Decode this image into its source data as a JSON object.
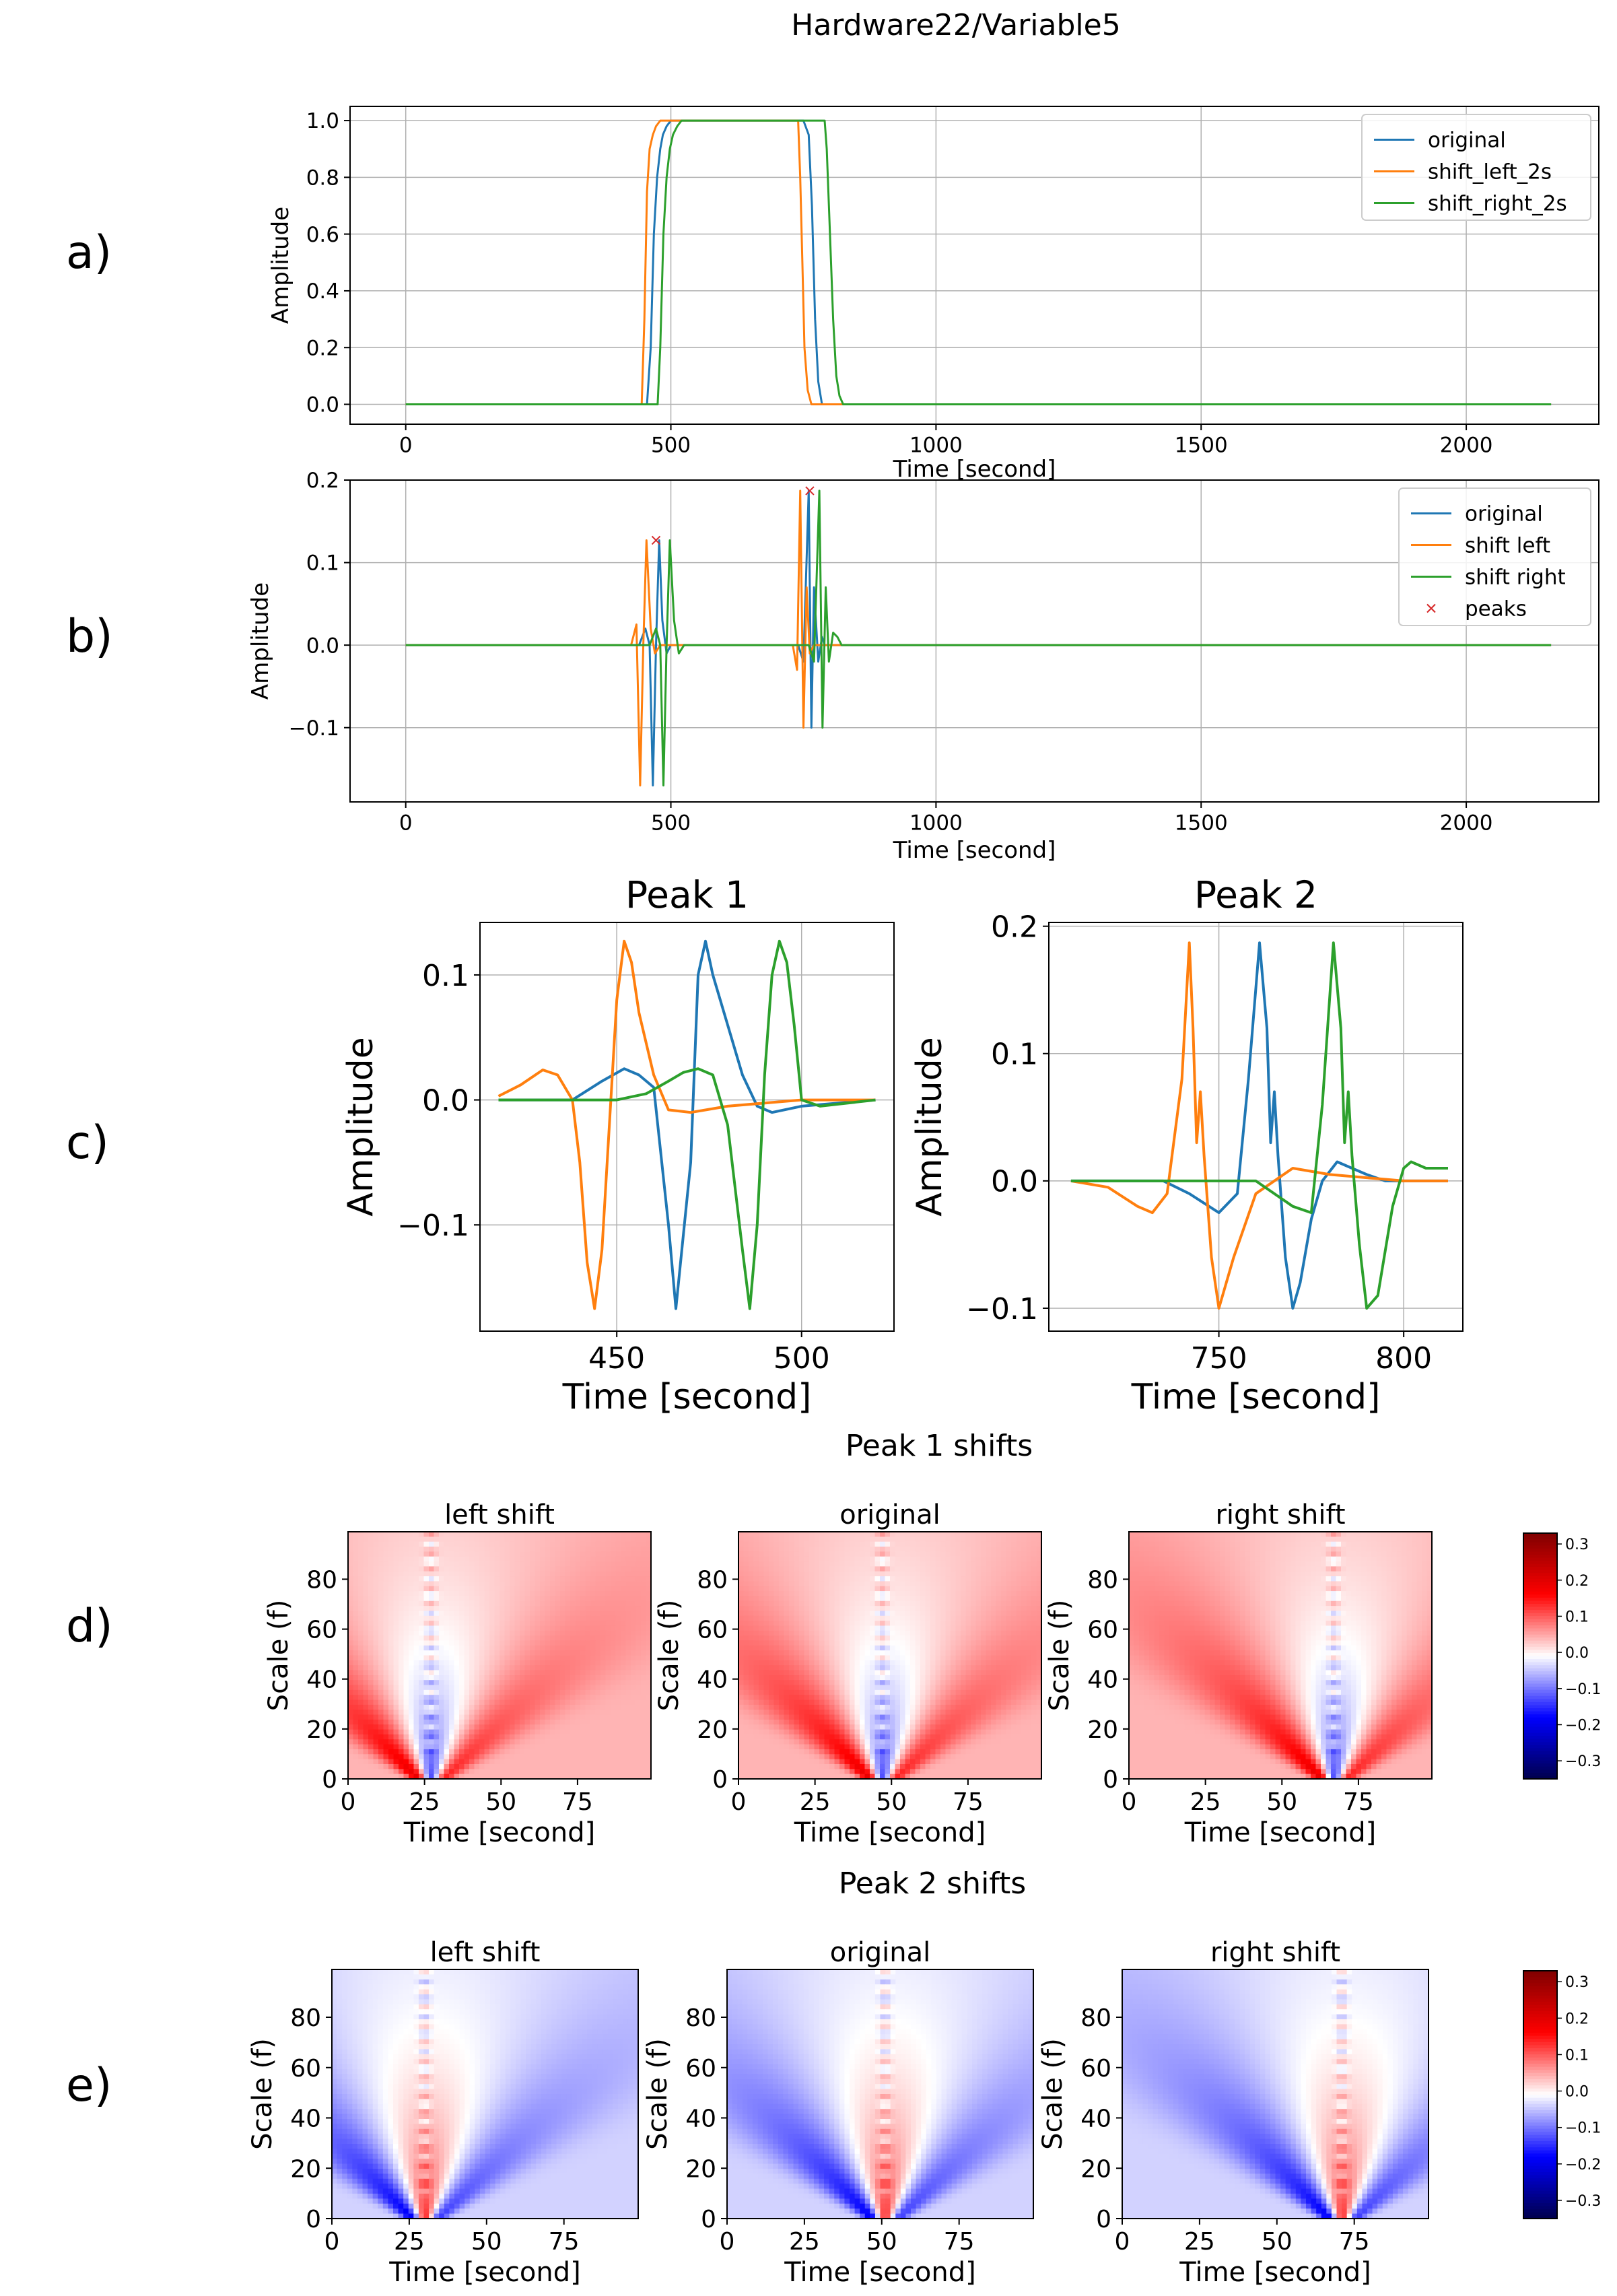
{
  "figure_title": "Hardware22/Variable5",
  "panel_labels": [
    "a)",
    "b)",
    "c)",
    "d)",
    "e)"
  ],
  "colors": {
    "original": "#1f77b4",
    "shift_left": "#ff7f0e",
    "shift_right": "#2ca02c",
    "peaks": "#d62728",
    "grid": "#b0b0b0",
    "colormap": "seismic"
  },
  "chart_data": [
    {
      "id": "a",
      "type": "line",
      "xlabel": "Time [second]",
      "ylabel": "Amplitude",
      "xlim": [
        -105,
        2250
      ],
      "ylim": [
        -0.07,
        1.05
      ],
      "xticks": [
        0,
        500,
        1000,
        1500,
        2000
      ],
      "yticks": [
        0.0,
        0.2,
        0.4,
        0.6,
        0.8,
        1.0
      ],
      "ytick_labels": [
        "0.0",
        "0.2",
        "0.4",
        "0.6",
        "0.8",
        "1.0"
      ],
      "grid": true,
      "legend": "top-right",
      "series": [
        {
          "name": "original",
          "color_key": "original",
          "x": [
            0,
            455,
            462,
            468,
            474,
            480,
            485,
            492,
            500,
            520,
            750,
            760,
            766,
            772,
            778,
            785,
            2160
          ],
          "y": [
            0,
            0,
            0.2,
            0.6,
            0.8,
            0.9,
            0.95,
            0.98,
            1.0,
            1.0,
            1.0,
            0.95,
            0.7,
            0.3,
            0.08,
            0,
            0
          ]
        },
        {
          "name": "shift_left_2s",
          "color_key": "shift_left",
          "x": [
            0,
            445,
            450,
            455,
            460,
            466,
            472,
            480,
            490,
            740,
            744,
            748,
            752,
            758,
            765,
            2160
          ],
          "y": [
            0,
            0,
            0.3,
            0.75,
            0.9,
            0.95,
            0.98,
            1.0,
            1.0,
            1.0,
            0.8,
            0.5,
            0.2,
            0.05,
            0,
            0
          ]
        },
        {
          "name": "shift_right_2s",
          "color_key": "shift_right",
          "x": [
            0,
            475,
            480,
            486,
            492,
            498,
            504,
            512,
            520,
            790,
            794,
            800,
            806,
            812,
            818,
            825,
            2160
          ],
          "y": [
            0,
            0,
            0.2,
            0.6,
            0.8,
            0.9,
            0.95,
            0.98,
            1.0,
            1.0,
            0.9,
            0.6,
            0.3,
            0.1,
            0.03,
            0,
            0
          ]
        }
      ]
    },
    {
      "id": "b",
      "type": "line",
      "xlabel": "Time [second]",
      "ylabel": "Amplitude",
      "xlim": [
        -105,
        2250
      ],
      "ylim": [
        -0.19,
        0.2
      ],
      "xticks": [
        0,
        500,
        1000,
        1500,
        2000
      ],
      "yticks": [
        -0.1,
        0.0,
        0.1,
        0.2
      ],
      "ytick_labels": [
        "−0.1",
        "0.0",
        "0.1",
        "0.2"
      ],
      "grid": true,
      "legend": "top-right",
      "series": [
        {
          "name": "original",
          "color_key": "original",
          "x": [
            0,
            440,
            452,
            460,
            466,
            472,
            478,
            484,
            492,
            500,
            520,
            740,
            750,
            760,
            765,
            770,
            778,
            785,
            790,
            800,
            2160
          ],
          "y": [
            0,
            0,
            0.02,
            0,
            -0.17,
            0,
            0.127,
            0.03,
            -0.01,
            0,
            0,
            0,
            -0.02,
            0.187,
            -0.1,
            0.07,
            -0.02,
            0.01,
            0,
            0,
            0
          ]
        },
        {
          "name": "shift left",
          "color_key": "shift_left",
          "x": [
            0,
            425,
            435,
            442,
            448,
            454,
            462,
            470,
            480,
            730,
            738,
            744,
            750,
            756,
            762,
            770,
            2160
          ],
          "y": [
            0,
            0,
            0.025,
            -0.17,
            0,
            0.127,
            0.02,
            -0.01,
            0,
            0,
            -0.03,
            0.187,
            -0.1,
            0.07,
            -0.01,
            0,
            0
          ]
        },
        {
          "name": "shift right",
          "color_key": "shift_right",
          "x": [
            0,
            460,
            472,
            480,
            486,
            492,
            498,
            506,
            515,
            525,
            760,
            770,
            780,
            786,
            792,
            798,
            806,
            814,
            822,
            2160
          ],
          "y": [
            0,
            0,
            0.02,
            0,
            -0.17,
            0,
            0.127,
            0.03,
            -0.01,
            0,
            0,
            -0.02,
            0.187,
            -0.1,
            0.07,
            -0.02,
            0.015,
            0.01,
            0,
            0
          ]
        }
      ],
      "peaks": {
        "name": "peaks",
        "color_key": "peaks",
        "x": [
          472,
          762
        ],
        "y": [
          0.127,
          0.187
        ]
      }
    },
    {
      "id": "c1",
      "type": "line",
      "title": "Peak 1",
      "xlabel": "Time [second]",
      "ylabel": "Amplitude",
      "xlim": [
        413,
        525
      ],
      "ylim": [
        -0.185,
        0.142
      ],
      "xticks": [
        450,
        500
      ],
      "yticks": [
        -0.1,
        0.0,
        0.1
      ],
      "ytick_labels": [
        "−0.1",
        "0.0",
        "0.1"
      ],
      "grid": true,
      "series": [
        {
          "name": "original",
          "color_key": "original",
          "x": [
            418,
            438,
            446,
            452,
            456,
            460,
            464,
            466,
            470,
            472,
            474,
            476,
            480,
            484,
            488,
            492,
            500,
            520
          ],
          "y": [
            0,
            0,
            0.015,
            0.025,
            0.02,
            0.01,
            -0.1,
            -0.167,
            -0.05,
            0.1,
            0.127,
            0.1,
            0.06,
            0.02,
            -0.005,
            -0.01,
            -0.005,
            0
          ]
        },
        {
          "name": "shift left",
          "color_key": "shift_left",
          "x": [
            418,
            424,
            430,
            434,
            438,
            440,
            442,
            444,
            446,
            448,
            450,
            452,
            454,
            456,
            460,
            464,
            470,
            480,
            500,
            520
          ],
          "y": [
            0.003,
            0.012,
            0.024,
            0.02,
            0.0,
            -0.05,
            -0.13,
            -0.167,
            -0.12,
            -0.02,
            0.08,
            0.127,
            0.11,
            0.07,
            0.02,
            -0.008,
            -0.01,
            -0.005,
            0,
            0
          ]
        },
        {
          "name": "shift right",
          "color_key": "shift_right",
          "x": [
            418,
            450,
            458,
            464,
            468,
            472,
            476,
            480,
            484,
            486,
            488,
            490,
            492,
            494,
            496,
            498,
            500,
            505,
            520
          ],
          "y": [
            0,
            0,
            0.005,
            0.015,
            0.022,
            0.025,
            0.02,
            -0.02,
            -0.12,
            -0.167,
            -0.1,
            0.02,
            0.1,
            0.127,
            0.11,
            0.06,
            0.0,
            -0.005,
            0
          ]
        }
      ]
    },
    {
      "id": "c2",
      "type": "line",
      "title": "Peak 2",
      "xlabel": "Time [second]",
      "ylabel": "Amplitude",
      "xlim": [
        704,
        816
      ],
      "ylim": [
        -0.118,
        0.203
      ],
      "xticks": [
        750,
        800
      ],
      "yticks": [
        -0.1,
        0.0,
        0.1,
        0.2
      ],
      "ytick_labels": [
        "−0.1",
        "0.0",
        "0.1",
        "0.2"
      ],
      "grid": true,
      "series": [
        {
          "name": "original",
          "color_key": "original",
          "x": [
            710,
            735,
            742,
            750,
            755,
            758,
            761,
            763,
            764,
            765,
            766,
            768,
            770,
            772,
            775,
            778,
            782,
            786,
            790,
            795,
            800,
            812
          ],
          "y": [
            0,
            0,
            -0.01,
            -0.025,
            -0.01,
            0.08,
            0.187,
            0.12,
            0.03,
            0.07,
            0.02,
            -0.06,
            -0.1,
            -0.08,
            -0.03,
            0.0,
            0.015,
            0.01,
            0.005,
            0,
            0,
            0
          ]
        },
        {
          "name": "shift left",
          "color_key": "shift_left",
          "x": [
            710,
            720,
            728,
            732,
            736,
            740,
            742,
            743,
            744,
            745,
            746,
            748,
            750,
            754,
            760,
            770,
            780,
            800,
            812
          ],
          "y": [
            0,
            -0.005,
            -0.02,
            -0.025,
            -0.01,
            0.08,
            0.187,
            0.12,
            0.03,
            0.07,
            0.02,
            -0.06,
            -0.1,
            -0.06,
            -0.01,
            0.01,
            0.005,
            0,
            0
          ]
        },
        {
          "name": "shift right",
          "color_key": "shift_right",
          "x": [
            710,
            760,
            770,
            775,
            778,
            781,
            783,
            784,
            785,
            786,
            788,
            790,
            793,
            797,
            800,
            802,
            806,
            812
          ],
          "y": [
            0,
            0,
            -0.02,
            -0.025,
            0.06,
            0.187,
            0.12,
            0.03,
            0.07,
            0.02,
            -0.05,
            -0.1,
            -0.09,
            -0.02,
            0.01,
            0.015,
            0.01,
            0.01
          ]
        }
      ]
    },
    {
      "id": "d",
      "type": "heatmap",
      "group_title": "Peak 1 shifts",
      "panels": [
        {
          "title": "left shift",
          "peak_time": 27
        },
        {
          "title": "original",
          "peak_time": 47
        },
        {
          "title": "right shift",
          "peak_time": 67
        }
      ],
      "xlabel": "Time [second]",
      "ylabel": "Scale (f)",
      "xlim": [
        0,
        99
      ],
      "ylim": [
        0,
        99
      ],
      "xticks": [
        0,
        25,
        50,
        75
      ],
      "yticks": [
        0,
        20,
        40,
        60,
        80
      ],
      "background_value": 0.04,
      "colorbar": {
        "min": -0.35,
        "max": 0.33,
        "ticks": [
          0.3,
          0.2,
          0.1,
          0.0,
          -0.1,
          -0.2,
          -0.3
        ],
        "tick_labels": [
          "0.3",
          "0.2",
          "0.1",
          "0.0",
          "−0.1",
          "−0.2",
          "−0.3"
        ]
      }
    },
    {
      "id": "e",
      "type": "heatmap",
      "group_title": "Peak 2 shifts",
      "panels": [
        {
          "title": "left shift",
          "peak_time": 30
        },
        {
          "title": "original",
          "peak_time": 51
        },
        {
          "title": "right shift",
          "peak_time": 71
        }
      ],
      "xlabel": "Time [second]",
      "ylabel": "Scale (f)",
      "xlim": [
        0,
        99
      ],
      "ylim": [
        0,
        99
      ],
      "xticks": [
        0,
        25,
        50,
        75
      ],
      "yticks": [
        0,
        20,
        40,
        60,
        80
      ],
      "background_value": -0.04,
      "colorbar": {
        "min": -0.35,
        "max": 0.33,
        "ticks": [
          0.3,
          0.2,
          0.1,
          0.0,
          -0.1,
          -0.2,
          -0.3
        ],
        "tick_labels": [
          "0.3",
          "0.2",
          "0.1",
          "0.0",
          "−0.1",
          "−0.2",
          "−0.3"
        ]
      }
    }
  ]
}
